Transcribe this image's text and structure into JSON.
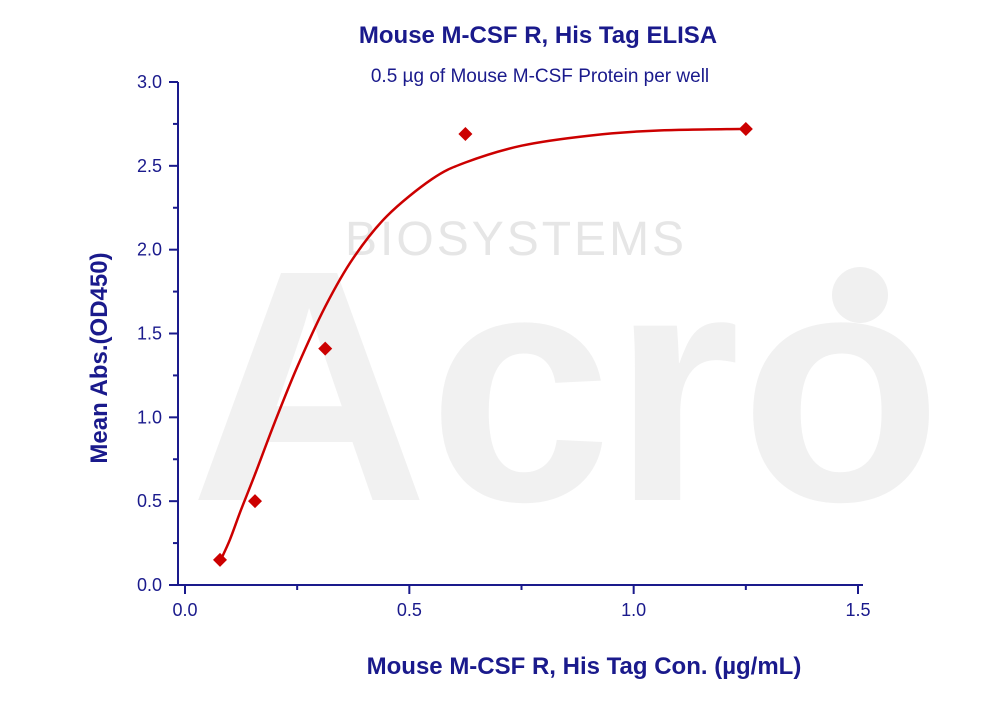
{
  "chart_data": {
    "type": "scatter",
    "title": "Mouse M-CSF R, His Tag ELISA",
    "subtitle": "0.5 µg of Mouse M-CSF Protein per well",
    "xlabel": "Mouse M-CSF R, His Tag Con. (µg/mL)",
    "ylabel": "Mean Abs.(OD450)",
    "xlim": [
      0,
      1.5
    ],
    "ylim": [
      0,
      3.0
    ],
    "x_ticks": [
      "0.0",
      "0.5",
      "1.0",
      "1.5"
    ],
    "y_ticks": [
      "0.0",
      "0.5",
      "1.0",
      "1.5",
      "2.0",
      "2.5",
      "3.0"
    ],
    "x_tick_values": [
      0,
      0.5,
      1.0,
      1.5
    ],
    "y_tick_values": [
      0,
      0.5,
      1.0,
      1.5,
      2.0,
      2.5,
      3.0
    ],
    "x_minor_step": 0.25,
    "y_minor_step": 0.25,
    "grid": false,
    "legend": "none",
    "marker": "diamond",
    "series": [
      {
        "x": [
          0.078,
          0.156,
          0.3125,
          0.625,
          1.25
        ],
        "y": [
          0.15,
          0.5,
          1.41,
          2.69,
          2.72
        ],
        "color": "#cc0000",
        "fit": "4PL"
      }
    ],
    "fit_curve": {
      "x": [
        0.078,
        0.1,
        0.125,
        0.156,
        0.2,
        0.25,
        0.3125,
        0.375,
        0.45,
        0.55,
        0.625,
        0.75,
        0.9,
        1.05,
        1.25
      ],
      "y": [
        0.14,
        0.27,
        0.45,
        0.66,
        0.97,
        1.3,
        1.66,
        1.95,
        2.2,
        2.42,
        2.52,
        2.62,
        2.68,
        2.71,
        2.72
      ],
      "color": "#cc0000"
    },
    "axis_color": "#1a1a8c",
    "watermark": "Acro BIOSYSTEMS"
  }
}
